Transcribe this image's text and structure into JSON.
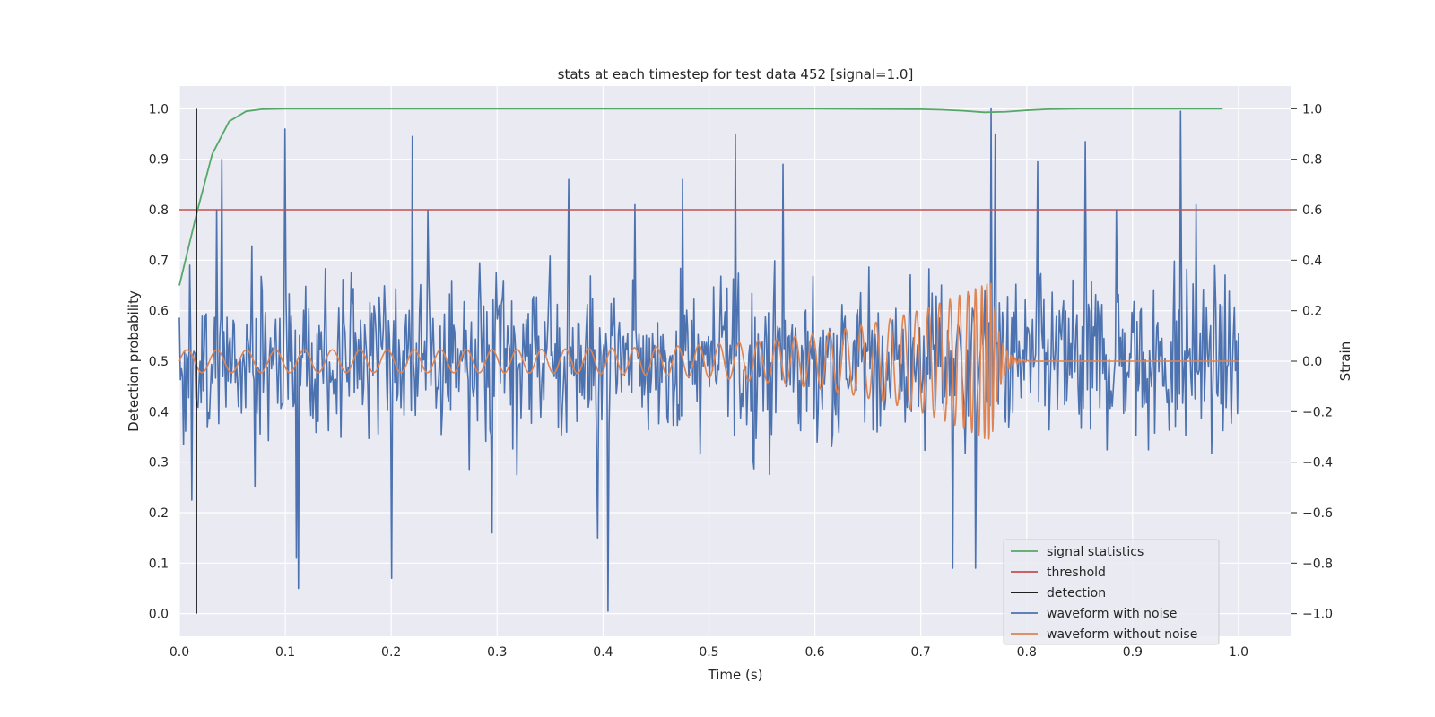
{
  "chart_data": {
    "type": "line",
    "title": "stats at each timestep for test data 452 [signal=1.0]",
    "xlabel": "Time (s)",
    "ylabel_left": "Detection probability",
    "ylabel_right": "Strain",
    "xlim": [
      0.0,
      1.05
    ],
    "ylim_left": [
      -0.045,
      1.045
    ],
    "ylim_right": [
      -1.09,
      1.09
    ],
    "x_ticks": [
      0.0,
      0.1,
      0.2,
      0.3,
      0.4,
      0.5,
      0.6,
      0.7,
      0.8,
      0.9,
      1.0
    ],
    "x_tick_labels": [
      "0.0",
      "0.1",
      "0.2",
      "0.3",
      "0.4",
      "0.5",
      "0.6",
      "0.7",
      "0.8",
      "0.9",
      "1.0"
    ],
    "y_left_ticks": [
      0.0,
      0.1,
      0.2,
      0.3,
      0.4,
      0.5,
      0.6,
      0.7,
      0.8,
      0.9,
      1.0
    ],
    "y_left_tick_labels": [
      "0.0",
      "0.1",
      "0.2",
      "0.3",
      "0.4",
      "0.5",
      "0.6",
      "0.7",
      "0.8",
      "0.9",
      "1.0"
    ],
    "y_right_ticks": [
      -1.0,
      -0.8,
      -0.6,
      -0.4,
      -0.2,
      0.0,
      0.2,
      0.4,
      0.6,
      0.8,
      1.0
    ],
    "y_right_tick_labels": [
      "−1.0",
      "−0.8",
      "−0.6",
      "−0.4",
      "−0.2",
      "0.0",
      "0.2",
      "0.4",
      "0.6",
      "0.8",
      "1.0"
    ],
    "grid": true,
    "legend_position": "lower-right",
    "signal_statistics": {
      "name": "signal statistics",
      "color": "#55a868",
      "axis": "left",
      "x": [
        0.0,
        0.016,
        0.031,
        0.047,
        0.063,
        0.078,
        0.1,
        0.2,
        0.3,
        0.4,
        0.5,
        0.6,
        0.7,
        0.72,
        0.74,
        0.76,
        0.78,
        0.8,
        0.82,
        0.85,
        0.9,
        0.95,
        0.985
      ],
      "y": [
        0.65,
        0.79,
        0.91,
        0.975,
        0.995,
        0.999,
        1.0,
        1.0,
        1.0,
        1.0,
        1.0,
        1.0,
        0.999,
        0.998,
        0.996,
        0.993,
        0.994,
        0.997,
        0.999,
        1.0,
        1.0,
        1.0,
        1.0
      ]
    },
    "threshold": {
      "name": "threshold",
      "color": "#c44e52",
      "axis": "left",
      "value": 0.8
    },
    "detection": {
      "name": "detection",
      "color": "#000000",
      "axis": "left",
      "x": 0.016,
      "y_range": [
        0.0,
        1.0
      ]
    },
    "waveform_with_noise": {
      "name": "waveform with noise",
      "color": "#4c72b0",
      "axis": "right",
      "x_range": [
        0.0,
        1.0
      ],
      "num_samples": 1024,
      "approx_amplitude_std": 0.27,
      "peaks": [
        {
          "x": 0.004,
          "y": -0.33
        },
        {
          "x": 0.01,
          "y": 0.38
        },
        {
          "x": 0.012,
          "y": -0.55
        },
        {
          "x": 0.035,
          "y": 0.6
        },
        {
          "x": 0.04,
          "y": 0.8
        },
        {
          "x": 0.1,
          "y": 0.92
        },
        {
          "x": 0.11,
          "y": -0.78
        },
        {
          "x": 0.112,
          "y": -0.9
        },
        {
          "x": 0.2,
          "y": -0.86
        },
        {
          "x": 0.22,
          "y": 0.89
        },
        {
          "x": 0.235,
          "y": 0.6
        },
        {
          "x": 0.295,
          "y": -0.68
        },
        {
          "x": 0.368,
          "y": 0.72
        },
        {
          "x": 0.395,
          "y": -0.7
        },
        {
          "x": 0.405,
          "y": -0.99
        },
        {
          "x": 0.43,
          "y": 0.62
        },
        {
          "x": 0.475,
          "y": 0.72
        },
        {
          "x": 0.525,
          "y": 0.9
        },
        {
          "x": 0.57,
          "y": 0.78
        },
        {
          "x": 0.73,
          "y": -0.82
        },
        {
          "x": 0.752,
          "y": -0.82
        },
        {
          "x": 0.766,
          "y": 1.0
        },
        {
          "x": 0.77,
          "y": 0.9
        },
        {
          "x": 0.81,
          "y": 0.79
        },
        {
          "x": 0.855,
          "y": 0.87
        },
        {
          "x": 0.885,
          "y": 0.6
        },
        {
          "x": 0.945,
          "y": 0.99
        },
        {
          "x": 0.96,
          "y": 0.62
        }
      ]
    },
    "waveform_without_noise": {
      "name": "waveform without noise",
      "color": "#dd8452",
      "axis": "right",
      "x_range": [
        0.0,
        1.0
      ],
      "merger_time": 0.767,
      "start_amplitude": 0.045,
      "peak_amplitude": 0.32,
      "start_frequency_hz": 35,
      "ringdown_end": 0.8
    },
    "legend": [
      {
        "label": "signal statistics",
        "color": "#55a868"
      },
      {
        "label": "threshold",
        "color": "#c44e52"
      },
      {
        "label": "detection",
        "color": "#000000"
      },
      {
        "label": "waveform with noise",
        "color": "#4c72b0"
      },
      {
        "label": "waveform without noise",
        "color": "#dd8452"
      }
    ],
    "background_color": "#eaeaf2",
    "grid_color": "#ffffff"
  }
}
